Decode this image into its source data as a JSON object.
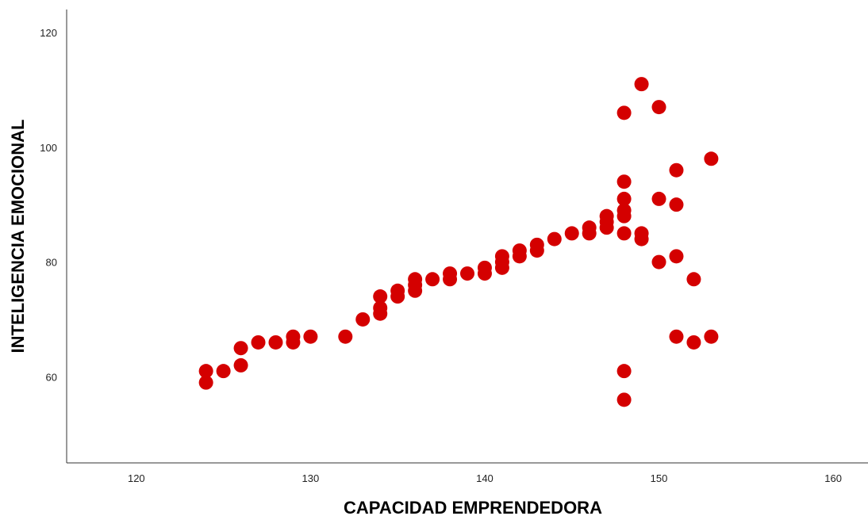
{
  "chart_data": {
    "type": "scatter",
    "title": "",
    "xlabel": "CAPACIDAD EMPRENDEDORA",
    "ylabel": "INTELIGENCIA EMOCIONAL",
    "xlim": [
      116,
      162
    ],
    "ylim": [
      45,
      124
    ],
    "xticks": [
      120,
      130,
      140,
      150,
      160
    ],
    "yticks": [
      60,
      80,
      100,
      120
    ],
    "grid": false,
    "legend": "none",
    "marker_color": "#d40000",
    "points": [
      [
        124,
        61
      ],
      [
        124,
        59
      ],
      [
        125,
        61
      ],
      [
        126,
        65
      ],
      [
        126,
        62
      ],
      [
        127,
        66
      ],
      [
        128,
        66
      ],
      [
        129,
        67
      ],
      [
        129,
        66
      ],
      [
        130,
        67
      ],
      [
        132,
        67
      ],
      [
        133,
        70
      ],
      [
        134,
        74
      ],
      [
        134,
        72
      ],
      [
        134,
        71
      ],
      [
        135,
        75
      ],
      [
        135,
        74
      ],
      [
        136,
        77
      ],
      [
        136,
        76
      ],
      [
        136,
        75
      ],
      [
        137,
        77
      ],
      [
        138,
        78
      ],
      [
        138,
        77
      ],
      [
        139,
        78
      ],
      [
        140,
        79
      ],
      [
        140,
        78
      ],
      [
        141,
        81
      ],
      [
        141,
        80
      ],
      [
        141,
        79
      ],
      [
        142,
        82
      ],
      [
        142,
        81
      ],
      [
        143,
        83
      ],
      [
        143,
        82
      ],
      [
        144,
        84
      ],
      [
        145,
        85
      ],
      [
        146,
        86
      ],
      [
        146,
        85
      ],
      [
        147,
        88
      ],
      [
        147,
        87
      ],
      [
        147,
        86
      ],
      [
        148,
        106
      ],
      [
        148,
        94
      ],
      [
        148,
        91
      ],
      [
        148,
        89
      ],
      [
        148,
        88
      ],
      [
        148,
        85
      ],
      [
        148,
        61
      ],
      [
        148,
        56
      ],
      [
        149,
        111
      ],
      [
        149,
        85
      ],
      [
        149,
        84
      ],
      [
        150,
        107
      ],
      [
        150,
        91
      ],
      [
        150,
        80
      ],
      [
        151,
        96
      ],
      [
        151,
        90
      ],
      [
        151,
        81
      ],
      [
        151,
        67
      ],
      [
        152,
        77
      ],
      [
        152,
        66
      ],
      [
        153,
        98
      ],
      [
        153,
        67
      ]
    ]
  }
}
